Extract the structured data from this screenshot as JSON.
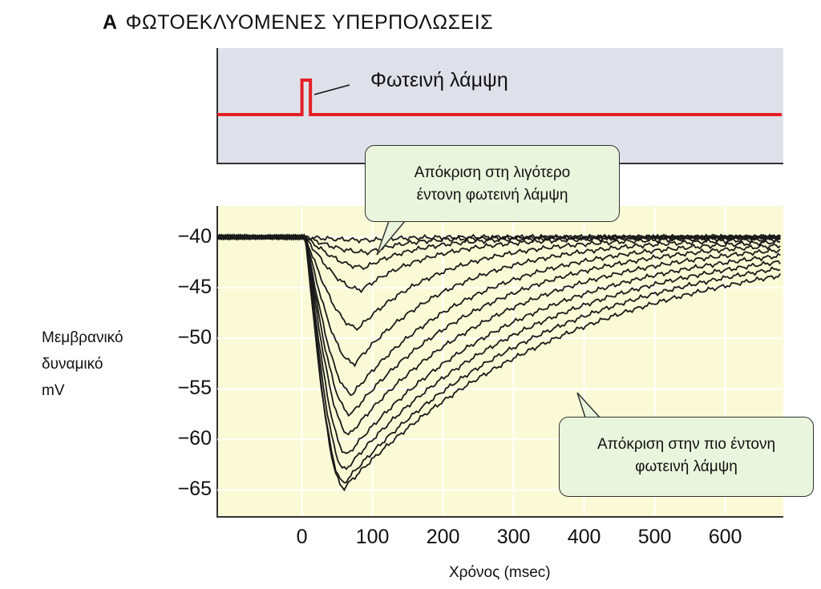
{
  "title": {
    "letter": "A",
    "text": "ΦΩΤΟΕΚΛΥΟΜΕΝΕΣ ΥΠΕΡΠΟΛΩΣΕΙΣ"
  },
  "stimulus": {
    "label": "Φωτεινή λάμψη",
    "color": "#e41f26"
  },
  "callouts": {
    "weak": [
      "Απόκριση στη λιγότερο",
      "έντονη φωτεινή λάμψη"
    ],
    "strong": [
      "Απόκριση στην πιο έντονη",
      "φωτεινή λάμψη"
    ]
  },
  "colors": {
    "stim_bg": "#dfe1ea",
    "plot_bg": "#fafbd6",
    "callout_bg": "#e9f6dd",
    "trace": "#1a1a1a"
  },
  "chart_data": {
    "type": "line",
    "xlabel": "Χρόνος (msec)",
    "ylabel": [
      "Μεμβρανικό",
      "δυναμικό",
      "mV"
    ],
    "xlim": [
      -120,
      680
    ],
    "ylim": [
      -67.5,
      -37
    ],
    "xticks": [
      0,
      100,
      200,
      300,
      400,
      500,
      600
    ],
    "yticks": [
      -40,
      -45,
      -50,
      -55,
      -60,
      -65
    ],
    "grid": true,
    "baseline_mV": -40,
    "flash_ms": [
      0,
      12
    ],
    "series": [
      {
        "peak": -40.3,
        "tpeak": 100,
        "tau": 40
      },
      {
        "peak": -41.5,
        "tpeak": 95,
        "tau": 60
      },
      {
        "peak": -43.0,
        "tpeak": 90,
        "tau": 80
      },
      {
        "peak": -45.2,
        "tpeak": 85,
        "tau": 100
      },
      {
        "peak": -49.0,
        "tpeak": 80,
        "tau": 125
      },
      {
        "peak": -52.5,
        "tpeak": 75,
        "tau": 150
      },
      {
        "peak": -55.5,
        "tpeak": 72,
        "tau": 175
      },
      {
        "peak": -57.5,
        "tpeak": 70,
        "tau": 200
      },
      {
        "peak": -59.5,
        "tpeak": 68,
        "tau": 225
      },
      {
        "peak": -61.5,
        "tpeak": 65,
        "tau": 250
      },
      {
        "peak": -63.0,
        "tpeak": 62,
        "tau": 275
      },
      {
        "peak": -64.3,
        "tpeak": 60,
        "tau": 300
      },
      {
        "peak": -64.8,
        "tpeak": 60,
        "tau": 330
      }
    ]
  }
}
